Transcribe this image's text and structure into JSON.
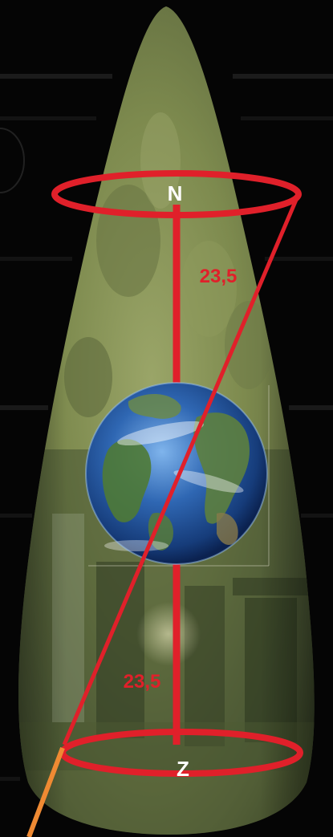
{
  "labels": {
    "north": "N",
    "south": "Z",
    "angle_top": "23,5",
    "angle_bottom": "23,5"
  },
  "colors": {
    "background": "#050505",
    "stone": "#7d8a4e",
    "stone_dark": "#4a5530",
    "axis_red": "#e0202a",
    "label_red": "#e0202a",
    "pole_label": "#ffffff",
    "pointer_orange": "#ef8a33",
    "earth_ocean": "#2b5fa8",
    "earth_land": "#4f7a35"
  }
}
